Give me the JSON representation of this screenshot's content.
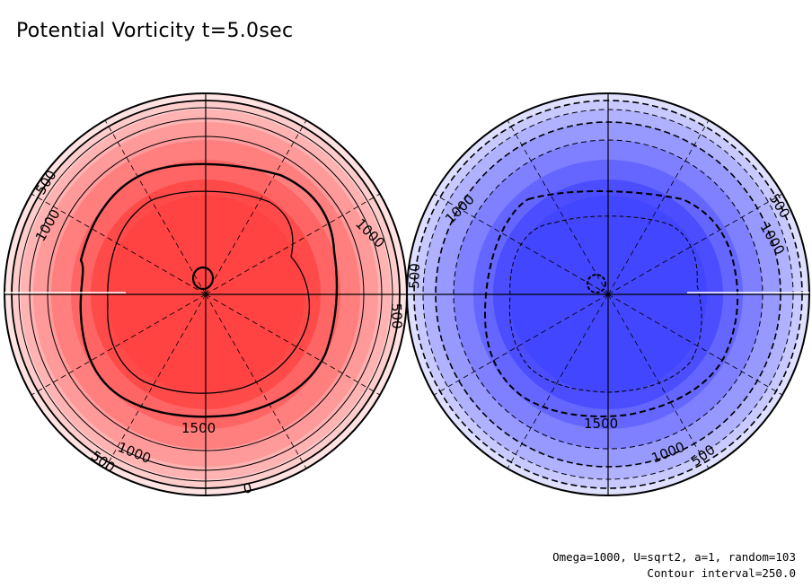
{
  "title": "Potential Vorticity t=5.0sec",
  "footer": {
    "params": "Omega=1000, U=sqrt2, a=1, random=103",
    "contour_interval": "Contour interval=250.0"
  },
  "colors": {
    "north": [
      "#ffe3e3",
      "#ffcccc",
      "#ffb3b3",
      "#ff9a9a",
      "#ff7f7f",
      "#ff6565",
      "#ff4a4a",
      "#ff4242"
    ],
    "south": [
      "#dfe0ff",
      "#c8caff",
      "#b0b2ff",
      "#9799ff",
      "#7e80ff",
      "#6466ff",
      "#4b4dff",
      "#4346ff"
    ],
    "line": "#000000"
  },
  "north_labels": {
    "l500_upper": "500",
    "l1000_upper": "1000",
    "l1000_right": "1000",
    "l500_right": "500",
    "l1500": "1500",
    "l1000_lower": "1000",
    "l500_lower": "500",
    "l0": "0"
  },
  "south_labels": {
    "l1000_upper": "1000",
    "l500_left": "500",
    "l500_right": "500",
    "l1000_right": "1000",
    "l1500": "1500",
    "l1000_lower": "1000",
    "l500_lower": "500"
  }
}
